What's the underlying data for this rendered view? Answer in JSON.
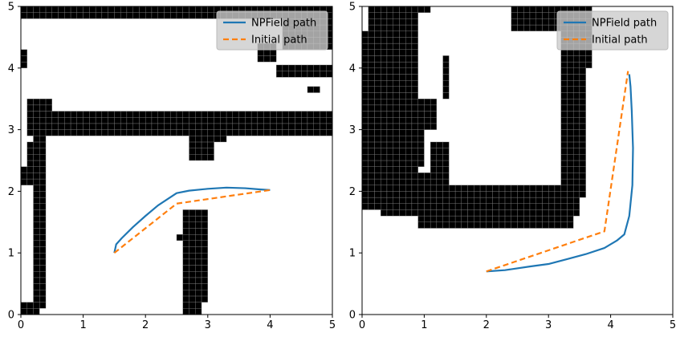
{
  "colors": {
    "npfield": "#1f77b4",
    "initial": "#ff7f0e",
    "obstacle": "#000000",
    "cell_grid": "#888888",
    "axes": "#000000",
    "background": "#ffffff",
    "legend_bg": "#cccccc"
  },
  "chart_data": [
    {
      "type": "line",
      "title": "",
      "xlabel": "",
      "ylabel": "",
      "xlim": [
        0,
        5
      ],
      "ylim": [
        0,
        5
      ],
      "xticks": [
        "0",
        "1",
        "2",
        "3",
        "4",
        "5"
      ],
      "yticks": [
        "0",
        "1",
        "2",
        "3",
        "4",
        "5"
      ],
      "grid": false,
      "cell_size": 0.1,
      "legend": {
        "position": "top-right",
        "entries": [
          "NPField path",
          "Initial path"
        ]
      },
      "series": [
        {
          "name": "NPField path",
          "style": "solid",
          "points": [
            [
              1.5,
              1.0
            ],
            [
              1.53,
              1.14
            ],
            [
              1.62,
              1.24
            ],
            [
              1.8,
              1.42
            ],
            [
              2.0,
              1.6
            ],
            [
              2.2,
              1.77
            ],
            [
              2.5,
              1.97
            ],
            [
              2.7,
              2.01
            ],
            [
              3.0,
              2.04
            ],
            [
              3.3,
              2.06
            ],
            [
              3.6,
              2.05
            ],
            [
              3.85,
              2.03
            ],
            [
              4.0,
              2.02
            ]
          ]
        },
        {
          "name": "Initial path",
          "style": "dashed",
          "points": [
            [
              1.5,
              1.0
            ],
            [
              2.5,
              1.8
            ],
            [
              4.0,
              2.02
            ]
          ]
        }
      ],
      "obstacles": [
        [
          0.0,
          5.0,
          4.8,
          5.0
        ],
        [
          4.8,
          5.0,
          4.3,
          5.0
        ],
        [
          0.1,
          0.5,
          3.2,
          3.5
        ],
        [
          0.1,
          5.0,
          2.9,
          3.3
        ],
        [
          0.2,
          0.4,
          0.1,
          2.9
        ],
        [
          0.0,
          0.3,
          0.0,
          0.2
        ],
        [
          0.0,
          0.2,
          2.1,
          2.4
        ],
        [
          0.1,
          0.3,
          2.4,
          2.8
        ],
        [
          2.7,
          3.1,
          2.5,
          3.0
        ],
        [
          3.0,
          3.3,
          2.8,
          3.0
        ],
        [
          2.6,
          2.9,
          0.0,
          1.7
        ],
        [
          2.9,
          3.0,
          0.6,
          1.4
        ],
        [
          2.9,
          3.0,
          1.2,
          1.7
        ],
        [
          2.5,
          2.6,
          1.2,
          1.3
        ],
        [
          2.9,
          3.0,
          0.2,
          0.7
        ],
        [
          3.8,
          4.1,
          4.1,
          4.4
        ],
        [
          4.1,
          5.0,
          3.85,
          4.05
        ],
        [
          4.6,
          4.8,
          3.6,
          3.7
        ],
        [
          0.5,
          0.6,
          4.85,
          4.95
        ],
        [
          0.0,
          0.1,
          4.0,
          4.3
        ],
        [
          4.2,
          5.0,
          4.3,
          4.8
        ]
      ]
    },
    {
      "type": "line",
      "title": "",
      "xlabel": "",
      "ylabel": "",
      "xlim": [
        0,
        5
      ],
      "ylim": [
        0,
        5
      ],
      "xticks": [
        "0",
        "1",
        "2",
        "3",
        "4",
        "5"
      ],
      "yticks": [
        "0",
        "1",
        "2",
        "3",
        "4",
        "5"
      ],
      "grid": false,
      "cell_size": 0.1,
      "legend": {
        "position": "top-right",
        "entries": [
          "NPField path",
          "Initial path"
        ]
      },
      "series": [
        {
          "name": "NPField path",
          "style": "solid",
          "points": [
            [
              2.0,
              0.7
            ],
            [
              2.3,
              0.72
            ],
            [
              2.7,
              0.78
            ],
            [
              3.0,
              0.82
            ],
            [
              3.3,
              0.9
            ],
            [
              3.6,
              0.98
            ],
            [
              3.9,
              1.08
            ],
            [
              4.1,
              1.2
            ],
            [
              4.22,
              1.3
            ],
            [
              4.3,
              1.6
            ],
            [
              4.35,
              2.1
            ],
            [
              4.36,
              2.7
            ],
            [
              4.34,
              3.3
            ],
            [
              4.32,
              3.7
            ],
            [
              4.3,
              3.9
            ]
          ]
        },
        {
          "name": "Initial path",
          "style": "dashed",
          "points": [
            [
              2.0,
              0.7
            ],
            [
              3.9,
              1.35
            ],
            [
              4.28,
              3.95
            ]
          ]
        }
      ],
      "obstacles": [
        [
          0.1,
          1.1,
          4.9,
          5.0
        ],
        [
          0.1,
          0.9,
          4.6,
          4.9
        ],
        [
          0.0,
          0.9,
          3.5,
          4.6
        ],
        [
          0.0,
          0.9,
          1.8,
          3.5
        ],
        [
          0.0,
          1.4,
          1.7,
          2.3
        ],
        [
          0.9,
          1.2,
          3.0,
          3.5
        ],
        [
          1.1,
          1.4,
          2.3,
          2.8
        ],
        [
          0.3,
          3.5,
          1.6,
          2.1
        ],
        [
          0.9,
          3.4,
          1.4,
          1.8
        ],
        [
          3.2,
          3.6,
          1.9,
          5.0
        ],
        [
          2.4,
          3.6,
          4.6,
          5.0
        ],
        [
          3.6,
          3.7,
          4.0,
          5.0
        ],
        [
          1.3,
          1.4,
          3.8,
          4.2
        ],
        [
          1.3,
          1.4,
          3.5,
          3.8
        ],
        [
          0.8,
          1.0,
          2.4,
          3.0
        ],
        [
          1.0,
          1.3,
          2.1,
          2.3
        ]
      ]
    }
  ]
}
